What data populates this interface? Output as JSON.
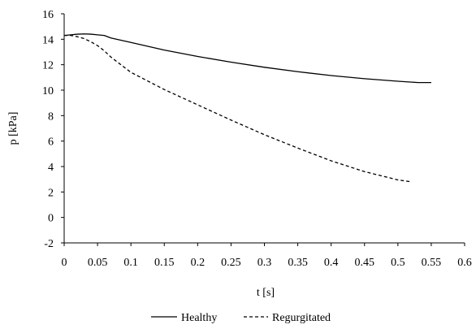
{
  "chart_data": {
    "type": "line",
    "title": "",
    "xlabel": "t [s]",
    "ylabel": "p [kPa]",
    "xlim": [
      0,
      0.6
    ],
    "ylim": [
      -2,
      16
    ],
    "xticks": [
      "0",
      "0.05",
      "0.1",
      "0.15",
      "0.2",
      "0.25",
      "0.3",
      "0.35",
      "0.4",
      "0.45",
      "0.5",
      "0.55",
      "0.6"
    ],
    "yticks": [
      "-2",
      "0",
      "2",
      "4",
      "6",
      "8",
      "10",
      "12",
      "14",
      "16"
    ],
    "grid": false,
    "legend_position": "bottom",
    "series": [
      {
        "name": "Healthy",
        "style": "solid",
        "color": "#000000",
        "x": [
          0,
          0.01,
          0.02,
          0.03,
          0.04,
          0.05,
          0.06,
          0.07,
          0.1,
          0.15,
          0.2,
          0.25,
          0.3,
          0.35,
          0.4,
          0.45,
          0.5,
          0.53,
          0.55
        ],
        "y": [
          14.3,
          14.35,
          14.4,
          14.42,
          14.4,
          14.35,
          14.3,
          14.1,
          13.75,
          13.15,
          12.65,
          12.2,
          11.8,
          11.45,
          11.15,
          10.9,
          10.7,
          10.6,
          10.6
        ]
      },
      {
        "name": "Regurgitated",
        "style": "dashed",
        "color": "#000000",
        "x": [
          0,
          0.01,
          0.02,
          0.03,
          0.04,
          0.05,
          0.06,
          0.07,
          0.1,
          0.15,
          0.2,
          0.25,
          0.3,
          0.35,
          0.4,
          0.45,
          0.5,
          0.52
        ],
        "y": [
          14.3,
          14.3,
          14.2,
          14.05,
          13.8,
          13.5,
          13.1,
          12.6,
          11.4,
          10.05,
          8.85,
          7.65,
          6.5,
          5.45,
          4.45,
          3.6,
          2.95,
          2.8
        ]
      }
    ]
  }
}
